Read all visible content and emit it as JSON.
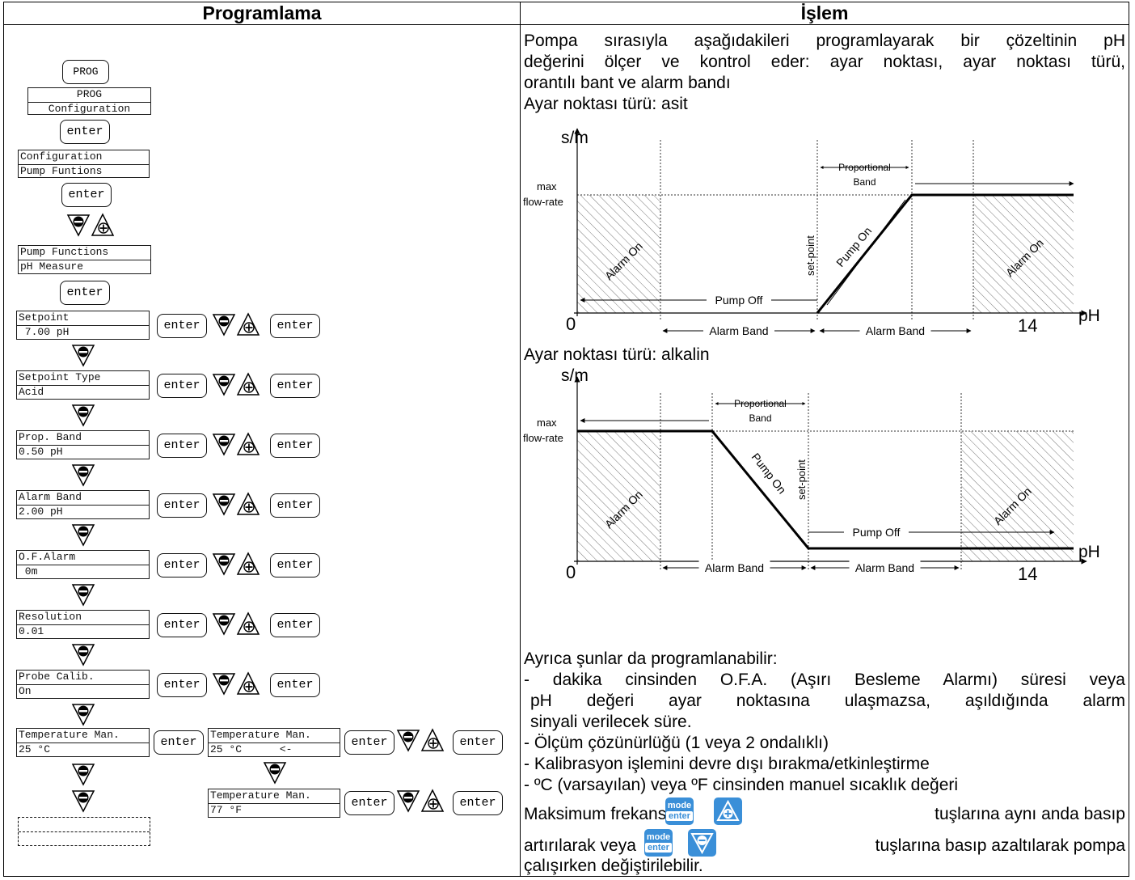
{
  "headers": {
    "left": "Programlama",
    "right": "İşlem"
  },
  "left": {
    "prog_button": "PROG",
    "prog_lcd": [
      "PROG",
      "Configuration"
    ],
    "enter_label": "enter",
    "config_lcd": [
      "Configuration",
      "Pump Funtions"
    ],
    "pumpfunc_lcd": [
      "Pump Functions",
      "pH Measure"
    ],
    "params": [
      {
        "line1": "Setpoint",
        "line2": " 7.00 pH"
      },
      {
        "line1": "Setpoint Type",
        "line2": "Acid"
      },
      {
        "line1": "Prop. Band",
        "line2": "0.50 pH"
      },
      {
        "line1": "Alarm Band",
        "line2": "2.00 pH"
      },
      {
        "line1": "O.F.Alarm",
        "line2": " 0m"
      },
      {
        "line1": "Resolution",
        "line2": "0.01"
      },
      {
        "line1": "Probe Calib.",
        "line2": "On"
      }
    ],
    "temp": {
      "lcd1": [
        "Temperature Man.",
        "25 °C"
      ],
      "lcd2": [
        "Temperature Man.",
        "25 °C      <-"
      ],
      "lcd3": [
        "Temperature Man.",
        "77 °F"
      ]
    }
  },
  "right": {
    "intro": [
      "Pompa sırasıyla aşağıdakileri programlayarak bir çözeltinin pH",
      "değerini ölçer ve kontrol eder: ayar noktası, ayar noktası türü,",
      "orantılı bant ve alarm bandı"
    ],
    "acid_title": "Ayar noktası türü: asit",
    "alk_title": "Ayar noktası türü: alkalin",
    "chart_labels": {
      "y": "s/m",
      "x": "pH",
      "zero": "0",
      "fourteen": "14",
      "max": "max",
      "flow": "flow-rate",
      "alarm_on": "Alarm On",
      "pump_on": "Pump On",
      "pump_off": "Pump Off",
      "setpoint": "set-point",
      "prop1": "Proportional",
      "prop2": "Band",
      "alarm_band": "Alarm Band"
    },
    "also_title": "Ayrıca şunlar da programlanabilir:",
    "bullets": [
      "- dakika cinsinden O.F.A. (Aşırı Besleme Alarmı) süresi veya",
      "pH değeri ayar noktasına ulaşmazsa, aşıldığında alarm",
      "sinyali verilecek süre.",
      "- Ölçüm çözünürlüğü (1 veya 2 ondalıklı)",
      "- Kalibrasyon işlemini devre dışı bırakma/etkinleştirme",
      "- ºC (varsayılan) veya ºF cinsinden manuel sıcaklık değeri"
    ],
    "freq1_a": "Maksimum frekans,",
    "freq1_b": "tuşlarına aynı anda basıp",
    "freq2_a": "artırılarak veya",
    "freq2_b": "tuşlarına basıp azaltılarak pompa",
    "freq3": "çalışırken değiştirilebilir.",
    "key_mode": "mode",
    "key_enter": "enter",
    "colors": {
      "key_blue": "#3a8fd8"
    }
  }
}
